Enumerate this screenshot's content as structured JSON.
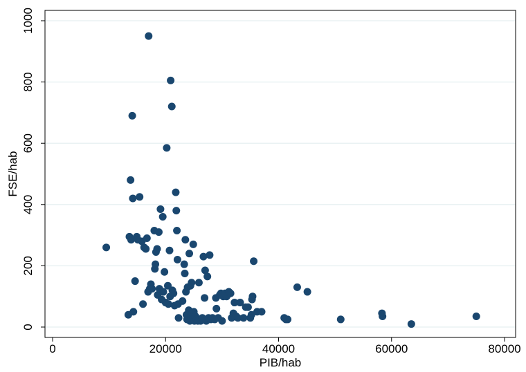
{
  "chart_data": {
    "type": "scatter",
    "title": "",
    "xlabel": "PIB/hab",
    "ylabel": "FSE/hab",
    "xlim": [
      0,
      82000
    ],
    "ylim": [
      -15,
      1030
    ],
    "xticks": [
      0,
      20000,
      40000,
      60000,
      80000
    ],
    "yticks": [
      0,
      200,
      400,
      600,
      800,
      1000
    ],
    "grid": "horizontal",
    "legend": "none",
    "colors": {
      "marker": "#1a476f",
      "grid": "#eaf2f3",
      "axis": "#000000",
      "background": "#ffffff"
    },
    "points": [
      [
        9500,
        260
      ],
      [
        13400,
        40
      ],
      [
        13600,
        295
      ],
      [
        13800,
        480
      ],
      [
        13900,
        285
      ],
      [
        14100,
        690
      ],
      [
        14200,
        420
      ],
      [
        14300,
        50
      ],
      [
        14600,
        150
      ],
      [
        14900,
        295
      ],
      [
        15100,
        285
      ],
      [
        15400,
        425
      ],
      [
        15800,
        280
      ],
      [
        16000,
        75
      ],
      [
        16200,
        260
      ],
      [
        16500,
        255
      ],
      [
        16700,
        290
      ],
      [
        16900,
        115
      ],
      [
        17000,
        950
      ],
      [
        17200,
        125
      ],
      [
        17400,
        140
      ],
      [
        17600,
        125
      ],
      [
        18000,
        315
      ],
      [
        18100,
        190
      ],
      [
        18200,
        205
      ],
      [
        18300,
        245
      ],
      [
        18500,
        255
      ],
      [
        18600,
        105
      ],
      [
        18800,
        310
      ],
      [
        18900,
        125
      ],
      [
        19100,
        385
      ],
      [
        19300,
        90
      ],
      [
        19500,
        360
      ],
      [
        19600,
        115
      ],
      [
        19800,
        180
      ],
      [
        20000,
        80
      ],
      [
        20200,
        585
      ],
      [
        20400,
        135
      ],
      [
        20500,
        75
      ],
      [
        20700,
        250
      ],
      [
        20800,
        100
      ],
      [
        20900,
        805
      ],
      [
        21100,
        720
      ],
      [
        21200,
        120
      ],
      [
        21400,
        110
      ],
      [
        21600,
        70
      ],
      [
        21800,
        440
      ],
      [
        21900,
        380
      ],
      [
        22000,
        315
      ],
      [
        22100,
        220
      ],
      [
        22200,
        75
      ],
      [
        22300,
        30
      ],
      [
        23000,
        85
      ],
      [
        23300,
        205
      ],
      [
        23400,
        175
      ],
      [
        23500,
        285
      ],
      [
        23600,
        115
      ],
      [
        23700,
        40
      ],
      [
        23800,
        25
      ],
      [
        23900,
        130
      ],
      [
        24000,
        30
      ],
      [
        24100,
        55
      ],
      [
        24200,
        240
      ],
      [
        24300,
        20
      ],
      [
        24400,
        135
      ],
      [
        24500,
        35
      ],
      [
        24600,
        145
      ],
      [
        24700,
        45
      ],
      [
        24800,
        25
      ],
      [
        24900,
        270
      ],
      [
        25000,
        50
      ],
      [
        25100,
        20
      ],
      [
        25300,
        35
      ],
      [
        25500,
        25
      ],
      [
        25700,
        20
      ],
      [
        25900,
        145
      ],
      [
        26200,
        20
      ],
      [
        26500,
        30
      ],
      [
        26700,
        230
      ],
      [
        26900,
        95
      ],
      [
        27000,
        185
      ],
      [
        27200,
        20
      ],
      [
        27400,
        165
      ],
      [
        27600,
        30
      ],
      [
        27800,
        235
      ],
      [
        28000,
        25
      ],
      [
        28300,
        30
      ],
      [
        28700,
        25
      ],
      [
        28900,
        95
      ],
      [
        29000,
        60
      ],
      [
        29300,
        30
      ],
      [
        29600,
        105
      ],
      [
        29800,
        110
      ],
      [
        30000,
        20
      ],
      [
        30200,
        100
      ],
      [
        30500,
        110
      ],
      [
        30800,
        100
      ],
      [
        31000,
        105
      ],
      [
        31200,
        115
      ],
      [
        31500,
        110
      ],
      [
        31700,
        30
      ],
      [
        32000,
        45
      ],
      [
        32200,
        80
      ],
      [
        32500,
        35
      ],
      [
        32800,
        30
      ],
      [
        33200,
        80
      ],
      [
        33800,
        30
      ],
      [
        34200,
        65
      ],
      [
        34600,
        65
      ],
      [
        35000,
        30
      ],
      [
        35200,
        40
      ],
      [
        35300,
        90
      ],
      [
        35400,
        100
      ],
      [
        35600,
        215
      ],
      [
        36200,
        50
      ],
      [
        37000,
        50
      ],
      [
        41000,
        30
      ],
      [
        41300,
        25
      ],
      [
        41600,
        25
      ],
      [
        43300,
        130
      ],
      [
        45100,
        115
      ],
      [
        51000,
        25
      ],
      [
        58300,
        45
      ],
      [
        58400,
        35
      ],
      [
        63500,
        10
      ],
      [
        75000,
        35
      ]
    ]
  }
}
